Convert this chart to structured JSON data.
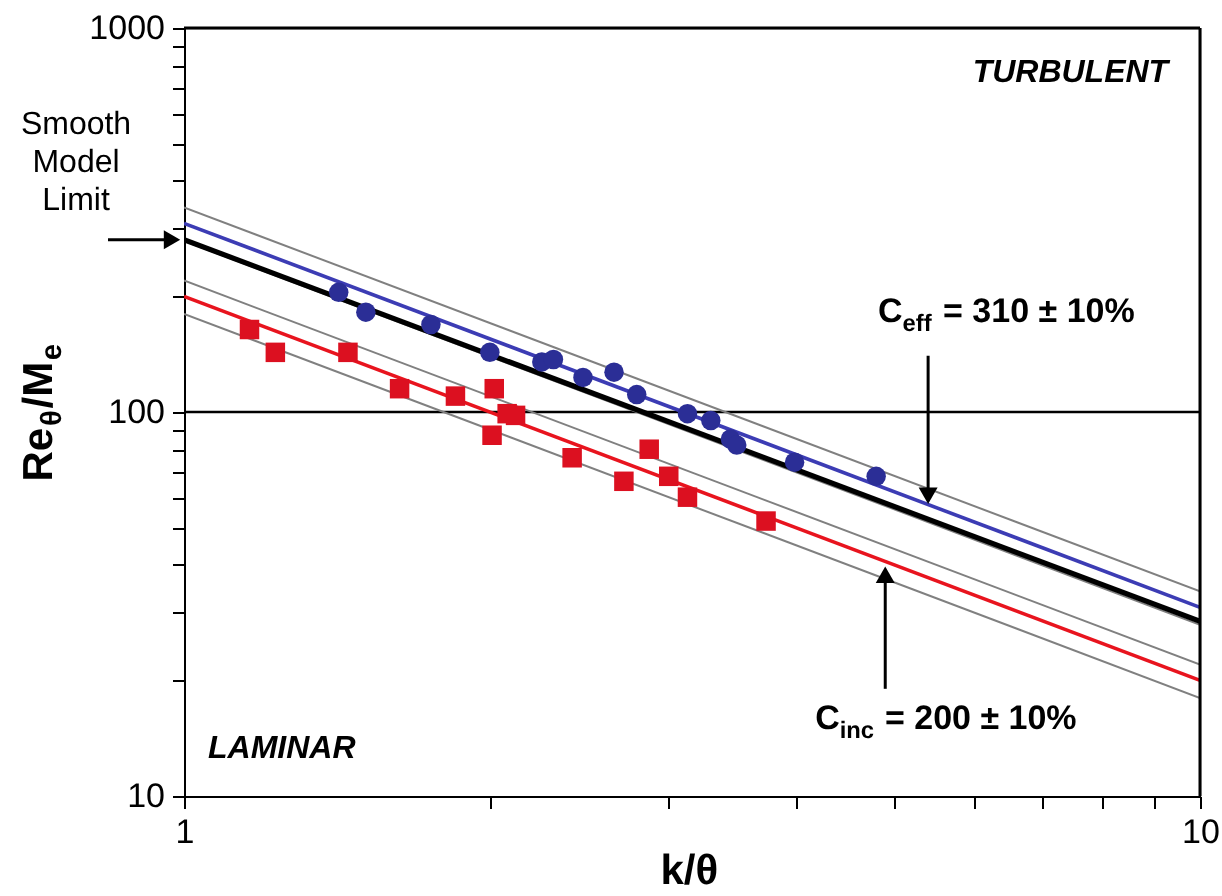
{
  "chart_data": {
    "type": "scatter",
    "xlabel": "k/θ",
    "ylabel": "Re$_{θ}$/M$_{e}$",
    "log": "xy",
    "xlim": [
      1,
      10
    ],
    "ylim": [
      10,
      1000
    ],
    "xticks": [
      1,
      {
        "value": 2,
        "label": null
      },
      {
        "value": 3,
        "label": null
      },
      {
        "value": 4,
        "label": null
      },
      {
        "value": 5,
        "label": null
      },
      {
        "value": 6,
        "label": null
      },
      {
        "value": 7,
        "label": null
      },
      {
        "value": 8,
        "label": null
      },
      {
        "value": 9,
        "label": null
      },
      10
    ],
    "yticks": [
      10,
      {
        "value": 20,
        "label": null
      },
      {
        "value": 30,
        "label": null
      },
      {
        "value": 40,
        "label": null
      },
      {
        "value": 50,
        "label": null
      },
      {
        "value": 60,
        "label": null
      },
      {
        "value": 70,
        "label": null
      },
      {
        "value": 80,
        "label": null
      },
      {
        "value": 90,
        "label": null
      },
      100,
      {
        "value": 200,
        "label": null
      },
      {
        "value": 300,
        "label": null
      },
      {
        "value": 400,
        "label": null
      },
      {
        "value": 500,
        "label": null
      },
      {
        "value": 600,
        "label": null
      },
      {
        "value": 700,
        "label": null
      },
      {
        "value": 800,
        "label": null
      },
      {
        "value": 900,
        "label": null
      },
      1000
    ],
    "grid": false,
    "ref_lines": [
      {
        "axis": "y",
        "value": 100,
        "color": "#000000"
      }
    ],
    "series": [
      {
        "type": "line",
        "marker": "none",
        "color": "#808080",
        "x": [
          1,
          10
        ],
        "values": [
          341,
          34.1
        ]
      },
      {
        "type": "line",
        "marker": "none",
        "color": "#808080",
        "x": [
          1,
          10
        ],
        "values": [
          279,
          27.9
        ]
      },
      {
        "type": "line",
        "marker": "none",
        "color": "#808080",
        "x": [
          1,
          10
        ],
        "values": [
          220,
          22
        ]
      },
      {
        "type": "line",
        "marker": "none",
        "color": "#808080",
        "x": [
          1,
          10
        ],
        "values": [
          180,
          18
        ]
      },
      {
        "type": "line",
        "marker": "none",
        "color": "#3c3cb4",
        "x": [
          1,
          10
        ],
        "values": [
          310,
          31
        ]
      },
      {
        "type": "line",
        "marker": "none",
        "color": "#e8141e",
        "x": [
          1,
          10
        ],
        "values": [
          200,
          20
        ]
      },
      {
        "type": "line",
        "marker": "none",
        "color": "#000000",
        "x": [
          1,
          10
        ],
        "values": [
          281,
          28.5
        ]
      },
      {
        "marker": "circle",
        "color": "#2b2e96",
        "x": [
          1.42,
          1.51,
          1.75,
          2.0,
          2.25,
          2.31,
          2.47,
          2.65,
          2.79,
          3.13,
          3.3,
          3.45,
          3.5,
          3.99,
          4.8
        ],
        "values": [
          205,
          182,
          169,
          143,
          135,
          137,
          123,
          127,
          111,
          99,
          95,
          85,
          82,
          74,
          68
        ]
      },
      {
        "marker": "square",
        "color": "#dc1020",
        "x": [
          1.16,
          1.23,
          1.45,
          1.63,
          1.85,
          2.02,
          2.01,
          2.08,
          2.12,
          2.41,
          2.87,
          2.71,
          3.0,
          3.13,
          3.74
        ],
        "values": [
          164,
          143,
          143,
          115,
          110,
          115,
          87,
          99,
          98,
          76,
          80,
          66,
          68,
          60,
          52
        ]
      }
    ],
    "annotations": [
      "TURBULENT",
      "LAMINAR",
      {
        "text": "Smooth Model Limit",
        "x": 1,
        "y": 281
      },
      {
        "text": "C$_{eff}$ = 310 ± 10%",
        "x": 5.4,
        "y": 57
      },
      {
        "text": "C$_{inc}$ = 200 ± 10%",
        "x": 4.9,
        "y": 40
      }
    ]
  }
}
